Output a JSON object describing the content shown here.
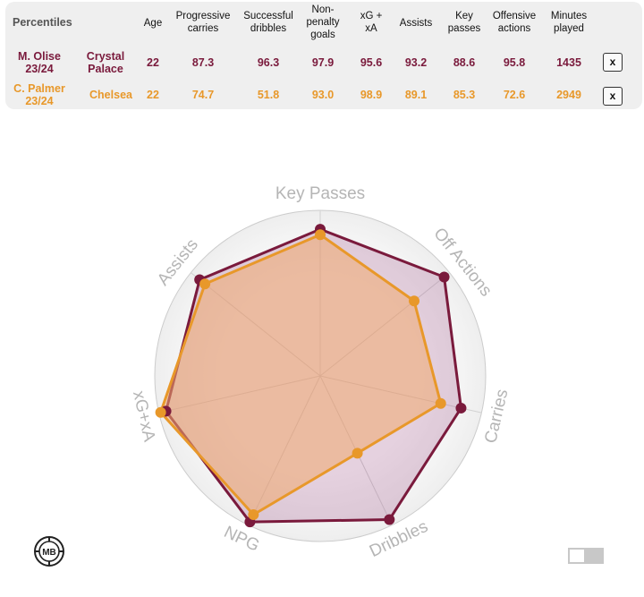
{
  "table": {
    "title": "Percentiles",
    "headers": {
      "age": "Age",
      "prog": [
        "Progressive",
        "carries"
      ],
      "drib": [
        "Successful",
        "dribbles"
      ],
      "npg": [
        "Non-",
        "penalty",
        "goals"
      ],
      "xgxa": [
        "xG +",
        "xA"
      ],
      "assists": "Assists",
      "keyp": [
        "Key",
        "passes"
      ],
      "offact": [
        "Offensive",
        "actions"
      ],
      "mins": [
        "Minutes",
        "played"
      ]
    },
    "rows": [
      {
        "player": [
          "M. Olise",
          "23/24"
        ],
        "team": [
          "Crystal",
          "Palace"
        ],
        "age": "22",
        "prog": "87.3",
        "drib": "96.3",
        "npg": "97.9",
        "xgxa": "95.6",
        "assists": "93.2",
        "keyp": "88.6",
        "offact": "95.8",
        "mins": "1435",
        "remove": "x"
      },
      {
        "player": [
          "C. Palmer",
          "23/24"
        ],
        "team": [
          "Chelsea"
        ],
        "age": "22",
        "prog": "74.7",
        "drib": "51.8",
        "npg": "93.0",
        "xgxa": "98.9",
        "assists": "89.1",
        "keyp": "85.3",
        "offact": "72.6",
        "mins": "2949",
        "remove": "x"
      }
    ]
  },
  "colors": {
    "olise": "#7a1a3c",
    "palmer": "#e8982a",
    "grid": "#c8c8c8",
    "label": "#b5b5b5"
  },
  "logo": {
    "text": "MB"
  },
  "chart_data": {
    "type": "radar",
    "axes": [
      "Key Passes",
      "Off Actions",
      "Carries",
      "Dribbles",
      "NPG",
      "xG+xA",
      "Assists"
    ],
    "range": [
      0,
      100
    ],
    "series": [
      {
        "name": "M. Olise 23/24",
        "values": [
          88.6,
          95.8,
          87.3,
          96.3,
          97.9,
          95.6,
          93.2
        ]
      },
      {
        "name": "C. Palmer 23/24",
        "values": [
          85.3,
          72.6,
          74.7,
          51.8,
          93.0,
          98.9,
          89.1
        ]
      }
    ]
  }
}
